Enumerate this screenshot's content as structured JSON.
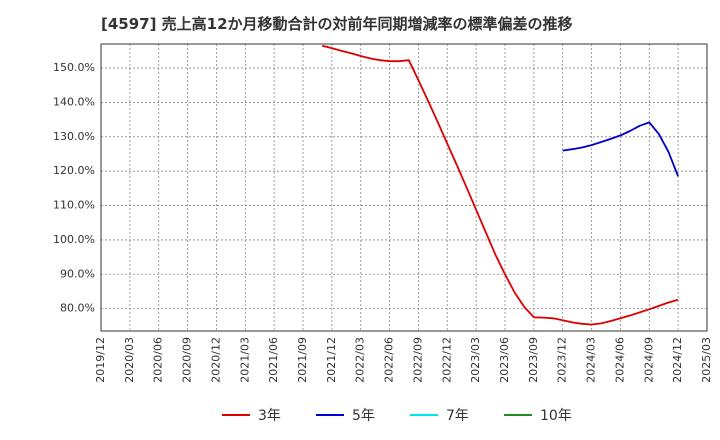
{
  "chart_data": {
    "type": "line",
    "title": "[4597]  売上高12か月移動合計の対前年同期増減率の標準偏差の推移",
    "xlabel": "",
    "ylabel": "",
    "x_ticks": [
      "2019/12",
      "2020/03",
      "2020/06",
      "2020/09",
      "2020/12",
      "2021/03",
      "2021/06",
      "2021/09",
      "2021/12",
      "2022/03",
      "2022/06",
      "2022/09",
      "2022/12",
      "2023/03",
      "2023/06",
      "2023/09",
      "2023/12",
      "2024/03",
      "2024/06",
      "2024/09",
      "2024/12",
      "2025/03"
    ],
    "y_ticks": [
      "80.0%",
      "90.0%",
      "100.0%",
      "110.0%",
      "120.0%",
      "130.0%",
      "140.0%",
      "150.0%"
    ],
    "y_tick_values": [
      80,
      90,
      100,
      110,
      120,
      130,
      140,
      150
    ],
    "ylim": [
      73.5,
      157
    ],
    "grid": true,
    "legend_position": "bottom",
    "series": [
      {
        "name": "3年",
        "color": "#dd0000",
        "x": [
          "2021/11",
          "2021/12",
          "2022/01",
          "2022/02",
          "2022/03",
          "2022/04",
          "2022/05",
          "2022/06",
          "2022/07",
          "2022/08",
          "2022/09",
          "2022/10",
          "2022/11",
          "2022/12",
          "2023/01",
          "2023/02",
          "2023/03",
          "2023/04",
          "2023/05",
          "2023/06",
          "2023/07",
          "2023/08",
          "2023/09",
          "2023/10",
          "2023/11",
          "2023/12",
          "2024/01",
          "2024/02",
          "2024/03",
          "2024/04",
          "2024/05",
          "2024/06",
          "2024/07",
          "2024/08",
          "2024/09",
          "2024/10",
          "2024/11",
          "2024/12"
        ],
        "values": [
          156.5,
          155.8,
          155.0,
          154.3,
          153.5,
          152.8,
          152.3,
          152.0,
          152.0,
          152.3,
          146.5,
          140.5,
          134.3,
          128.0,
          121.7,
          115.3,
          108.8,
          102.2,
          95.7,
          90.0,
          84.7,
          80.5,
          77.5,
          77.4,
          77.2,
          76.6,
          76.0,
          75.6,
          75.4,
          75.7,
          76.4,
          77.2,
          78.0,
          78.9,
          79.8,
          80.8,
          81.8,
          82.6
        ]
      },
      {
        "name": "5年",
        "color": "#0000cc",
        "x": [
          "2023/12",
          "2024/01",
          "2024/02",
          "2024/03",
          "2024/04",
          "2024/05",
          "2024/06",
          "2024/07",
          "2024/08",
          "2024/09",
          "2024/10",
          "2024/11",
          "2024/12"
        ],
        "values": [
          126.0,
          126.4,
          126.9,
          127.6,
          128.5,
          129.4,
          130.4,
          131.7,
          133.2,
          134.2,
          130.8,
          125.6,
          118.5
        ]
      },
      {
        "name": "7年",
        "color": "#00e5ee",
        "x": [],
        "values": []
      },
      {
        "name": "10年",
        "color": "#228b22",
        "x": [],
        "values": []
      }
    ]
  }
}
